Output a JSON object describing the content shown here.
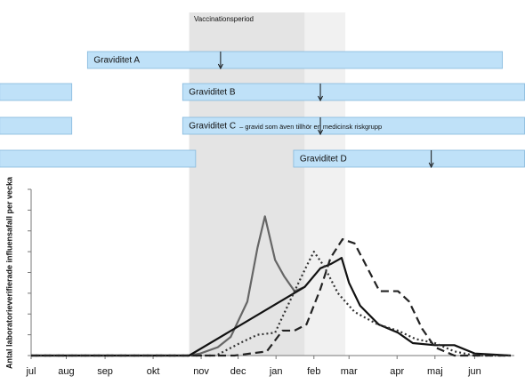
{
  "chart_data": {
    "type": "line",
    "y_label": "Antal laboratorieverifierade influensafall per vecka",
    "xlim": [
      0,
      52
    ],
    "ylim": [
      0,
      8
    ],
    "xticks": [
      {
        "value": 0,
        "label": "jul"
      },
      {
        "value": 3.8,
        "label": "aug"
      },
      {
        "value": 8,
        "label": "sep"
      },
      {
        "value": 13.2,
        "label": "okt"
      },
      {
        "value": 18.4,
        "label": "nov"
      },
      {
        "value": 22.4,
        "label": "dec"
      },
      {
        "value": 26.5,
        "label": "jan"
      },
      {
        "value": 30.6,
        "label": "feb"
      },
      {
        "value": 34.4,
        "label": "mar"
      },
      {
        "value": 39.6,
        "label": "apr"
      },
      {
        "value": 43.7,
        "label": "maj"
      },
      {
        "value": 48,
        "label": "jun"
      }
    ],
    "yticks": [
      0,
      1,
      2,
      3,
      4,
      5,
      6,
      7,
      8
    ],
    "vaccination_period": {
      "label": "Vaccinationsperiod",
      "start": 17.1,
      "end": 34,
      "late_start": 29.6
    },
    "pregnancies": [
      {
        "label": "Graviditet A",
        "spans": [
          [
            6.1,
            51
          ]
        ],
        "arrow": 20.5
      },
      {
        "label": "Graviditet B",
        "spans": [
          [
            -3.4,
            4.4
          ],
          [
            16.4,
            53.4
          ]
        ],
        "arrow": 31.3
      },
      {
        "label": "Graviditet C",
        "sublabel": "– gravid som även tillhör en medicinsk riskgrupp",
        "spans": [
          [
            -3.4,
            4.4
          ],
          [
            16.4,
            53.4
          ]
        ],
        "arrow": 31.3
      },
      {
        "label": "Graviditet D",
        "spans": [
          [
            -3.4,
            17.8
          ],
          [
            28.4,
            53.4
          ]
        ],
        "arrow": 43.3
      }
    ],
    "series": [
      {
        "color": "#666666",
        "dash": "none",
        "x": [
          0,
          17.1,
          18.3,
          20.2,
          21.6,
          23.4,
          24.5,
          25.3,
          26.4,
          27.4,
          28.5,
          29.6
        ],
        "values": [
          0,
          0,
          0.1,
          0.4,
          0.9,
          2.6,
          5.2,
          6.7,
          4.6,
          3.8,
          3.1,
          3.3
        ]
      },
      {
        "color": "#111111",
        "dash": "none",
        "x": [
          0,
          17.1,
          29.6,
          31.3,
          32.4,
          33.6,
          34.4,
          35.6,
          37.6,
          39.7,
          41.3,
          43.7,
          45.8,
          48,
          51.9
        ],
        "values": [
          0,
          0,
          3.3,
          4.2,
          4.4,
          4.7,
          3.5,
          2.4,
          1.5,
          1.1,
          0.6,
          0.5,
          0.5,
          0.1,
          0
        ]
      },
      {
        "color": "#333333",
        "dash": "2,3",
        "x": [
          0,
          20,
          22.6,
          24.5,
          26.4,
          28.4,
          29.8,
          30.6,
          31.7,
          33.2,
          35,
          37.5,
          39.7,
          41.6,
          43.7,
          45.8,
          48,
          51.9
        ],
        "values": [
          0,
          0,
          0.6,
          1.0,
          1.1,
          3.0,
          4.3,
          5.0,
          4.3,
          3.0,
          2.1,
          1.5,
          1.2,
          0.8,
          0.6,
          0.2,
          0,
          0
        ]
      },
      {
        "color": "#222222",
        "dash": "9,5",
        "x": [
          0,
          22,
          25.5,
          27.2,
          28.5,
          29.8,
          31.3,
          32.4,
          33.7,
          35,
          37.7,
          39.7,
          40.9,
          42.3,
          43.7,
          45.8,
          51.9
        ],
        "values": [
          0,
          0,
          0.2,
          1.2,
          1.2,
          1.5,
          3.2,
          4.7,
          5.6,
          5.4,
          3.1,
          3.1,
          2.6,
          1.3,
          0.4,
          0,
          0
        ]
      }
    ]
  }
}
